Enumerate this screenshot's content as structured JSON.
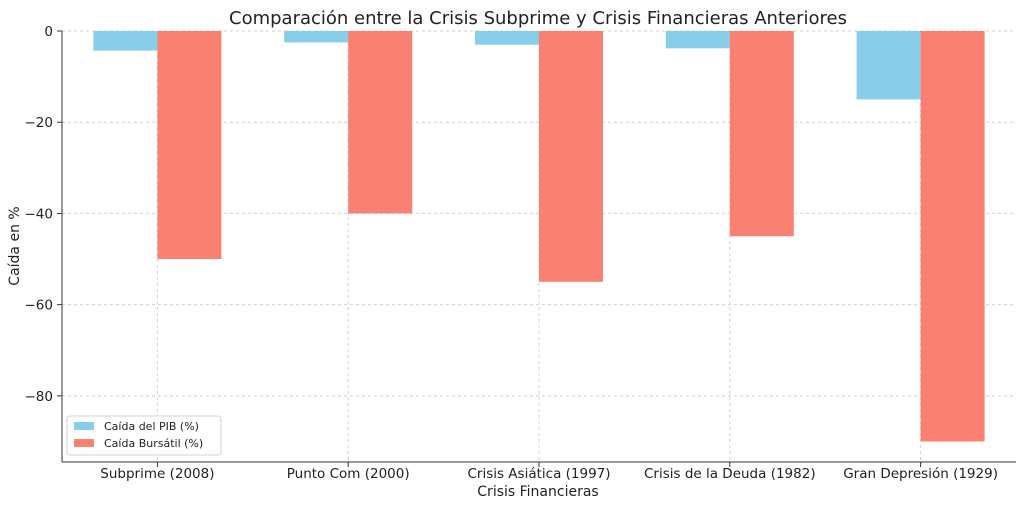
{
  "chart_data": {
    "type": "bar",
    "title": "Comparación entre la Crisis Subprime y Crisis Financieras Anteriores",
    "xlabel": "Crisis Financieras",
    "ylabel": "Caída en %",
    "categories": [
      "Subprime (2008)",
      "Punto Com (2000)",
      "Crisis Asiática (1997)",
      "Crisis de la Deuda (1982)",
      "Gran Depresión (1929)"
    ],
    "series": [
      {
        "name": "Caída del PIB (%)",
        "color": "#87CEEB",
        "values": [
          -4.3,
          -2.5,
          -3,
          -3.8,
          -15
        ]
      },
      {
        "name": "Caída Bursátil (%)",
        "color": "#FA8072",
        "values": [
          -50,
          -40,
          -55,
          -45,
          -90
        ]
      }
    ],
    "ylim": [
      -94.5,
      0
    ],
    "yticks": [
      0,
      -20,
      -40,
      -60,
      -80
    ],
    "ytick_labels": [
      "0",
      "−20",
      "−40",
      "−60",
      "−80"
    ],
    "grid": true,
    "legend_position": "bottom-left"
  }
}
